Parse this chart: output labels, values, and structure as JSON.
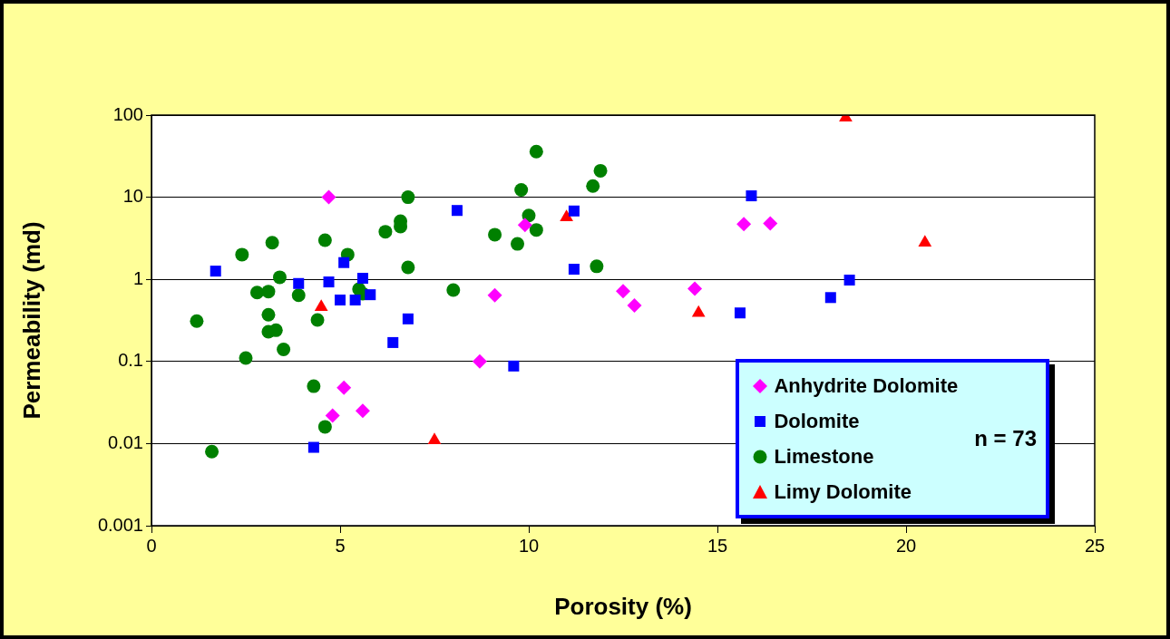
{
  "chart_data": {
    "type": "scatter",
    "xlabel": "Porosity (%)",
    "ylabel": "Permeability (md)",
    "log": "y",
    "grid": "y",
    "legend": "bottom right",
    "xlim": [
      0,
      25
    ],
    "xticks": [
      0,
      5,
      10,
      15,
      20,
      25
    ],
    "ylim": [
      0.001,
      100
    ],
    "yticks": [
      0.001,
      0.01,
      0.1,
      1,
      10,
      100
    ],
    "annotations": [
      "n = 73"
    ],
    "series": [
      {
        "name": "Anhydrite Dolomite",
        "color": "#ff00ff",
        "marker": "diamond",
        "x": [
          4.7,
          9.1,
          8.7,
          5.1,
          4.8,
          5.6,
          9.9,
          12.5,
          12.8,
          14.4,
          15.7,
          16.4
        ],
        "values": [
          10,
          0.64,
          0.1,
          0.048,
          0.022,
          0.025,
          4.6,
          0.72,
          0.48,
          0.77,
          4.7,
          4.8
        ]
      },
      {
        "name": "Dolomite",
        "color": "#0000ff",
        "marker": "square",
        "x": [
          1.7,
          3.9,
          4.7,
          5.1,
          5.6,
          5.0,
          5.4,
          5.8,
          6.8,
          6.4,
          4.3,
          8.1,
          11.2,
          11.2,
          9.6,
          15.9,
          15.6,
          18.0,
          18.5
        ],
        "values": [
          1.26,
          0.89,
          0.93,
          1.6,
          1.03,
          0.56,
          0.56,
          0.65,
          0.33,
          0.17,
          0.009,
          6.9,
          6.8,
          1.33,
          0.088,
          10.4,
          0.39,
          0.6,
          0.98
        ]
      },
      {
        "name": "Limestone",
        "color": "#008000",
        "marker": "circle",
        "x": [
          6.8,
          6.6,
          6.6,
          6.2,
          4.6,
          3.2,
          2.4,
          5.2,
          6.8,
          3.4,
          2.8,
          3.1,
          3.9,
          5.5,
          5.6,
          3.1,
          1.2,
          4.4,
          3.1,
          3.3,
          3.5,
          2.5,
          4.3,
          4.6,
          1.6,
          10.2,
          11.9,
          11.7,
          9.8,
          10.0,
          10.2,
          9.1,
          9.7,
          11.8,
          8.0
        ],
        "values": [
          10,
          5.1,
          4.4,
          3.8,
          3.0,
          2.8,
          2.0,
          2.0,
          1.4,
          1.06,
          0.69,
          0.71,
          0.64,
          0.76,
          0.67,
          0.37,
          0.31,
          0.32,
          0.23,
          0.24,
          0.14,
          0.11,
          0.05,
          0.016,
          0.008,
          36,
          21,
          13.7,
          12.3,
          6.0,
          4.0,
          3.5,
          2.7,
          1.44,
          0.74
        ]
      },
      {
        "name": "Limy Dolomite",
        "color": "#ff0000",
        "marker": "triangle",
        "x": [
          18.4,
          11.0,
          20.5,
          4.5,
          14.5,
          7.5
        ],
        "values": [
          93,
          5.7,
          2.8,
          0.46,
          0.39,
          0.011
        ]
      }
    ]
  }
}
